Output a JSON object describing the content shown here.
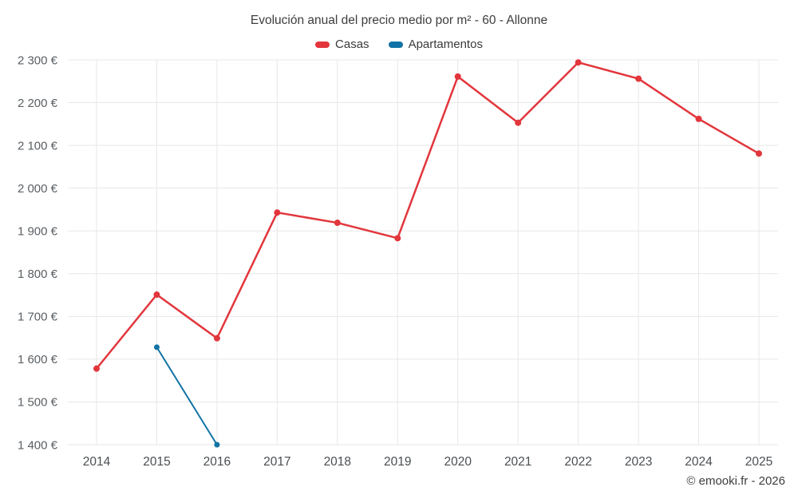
{
  "chart_data": {
    "type": "line",
    "title": "Evolución anual del precio medio por m² - 60 - Allonne",
    "categories": [
      "2014",
      "2015",
      "2016",
      "2017",
      "2018",
      "2019",
      "2020",
      "2021",
      "2022",
      "2023",
      "2024",
      "2025"
    ],
    "series": [
      {
        "name": "Casas",
        "color": "#e2363c",
        "line_width": 2.5,
        "marker_radius": 4,
        "values": [
          1578,
          1751,
          1649,
          1943,
          1919,
          1883,
          2261,
          2153,
          2294,
          2256,
          2162,
          2081
        ]
      },
      {
        "name": "Apartamentos",
        "color": "#1173a5",
        "line_width": 2,
        "marker_radius": 3.5,
        "values": [
          null,
          1628,
          1400,
          null,
          null,
          null,
          null,
          null,
          null,
          null,
          null,
          null
        ]
      }
    ],
    "ylim": [
      1400,
      2300
    ],
    "ytick_step": 100,
    "ytick_suffix": " €",
    "grid": true,
    "legend_position": "top"
  },
  "footer": {
    "text": "© emooki.fr - 2026"
  }
}
